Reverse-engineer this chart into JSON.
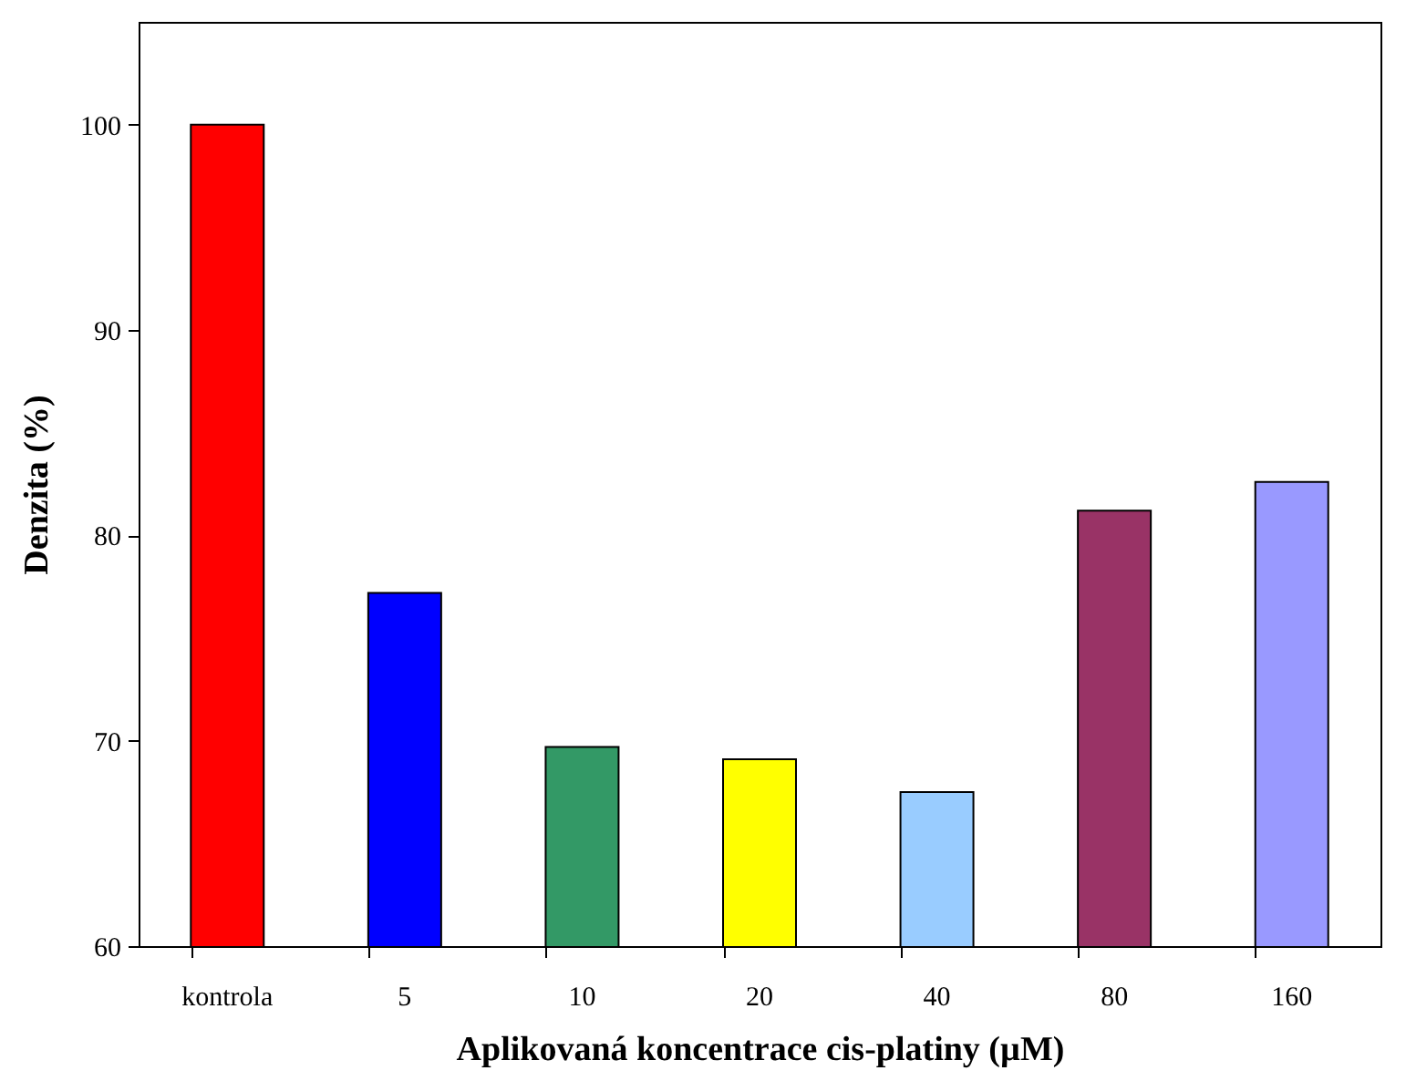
{
  "chart_data": {
    "type": "bar",
    "categories": [
      "kontrola",
      "5",
      "10",
      "20",
      "40",
      "80",
      "160"
    ],
    "values": [
      100,
      77.2,
      69.7,
      69.1,
      67.5,
      81.2,
      82.6
    ],
    "colors": [
      "#ff0000",
      "#0000ff",
      "#339966",
      "#ffff00",
      "#99ccff",
      "#993366",
      "#9999ff"
    ],
    "xlabel": "Aplikovaná koncentrace cis-platiny (µM)",
    "ylabel": "Denzita (%)",
    "ylim": [
      60,
      105
    ],
    "yticks": [
      60,
      70,
      80,
      90,
      100
    ],
    "grid": false,
    "legend": false
  }
}
